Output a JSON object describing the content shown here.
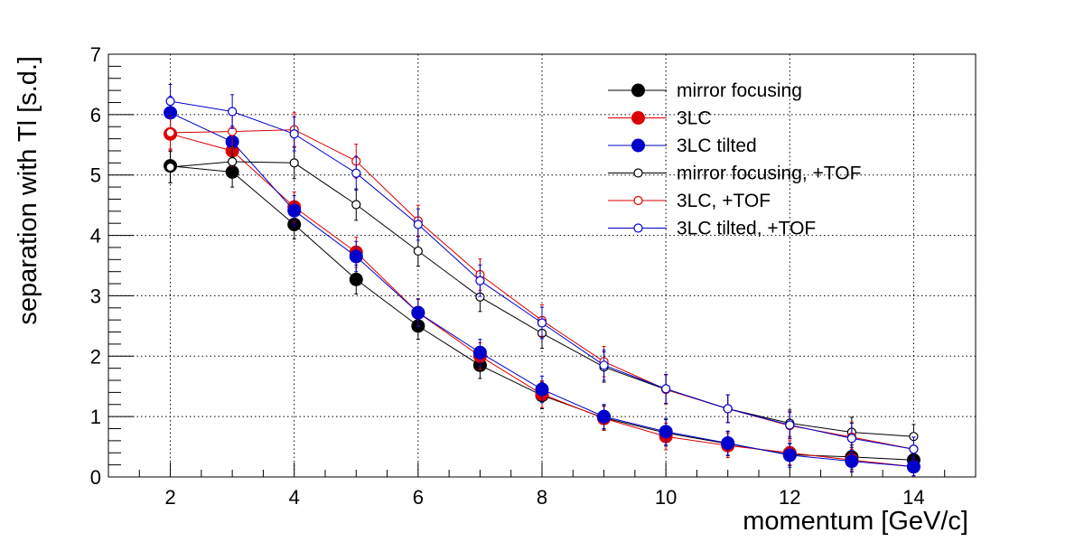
{
  "chart_data": {
    "type": "line",
    "xlabel": "momentum [GeV/c]",
    "ylabel": "separation with Tl [s.d.]",
    "xlim": [
      1,
      15
    ],
    "ylim": [
      0,
      7
    ],
    "xticks": [
      2,
      4,
      6,
      8,
      10,
      12,
      14
    ],
    "yticks": [
      0,
      1,
      2,
      3,
      4,
      5,
      6,
      7
    ],
    "grid": true,
    "legend_position": "top-right",
    "x": [
      2,
      3,
      4,
      5,
      6,
      7,
      8,
      9,
      10,
      11,
      12,
      13,
      14
    ],
    "series": [
      {
        "name": "mirror focusing",
        "color": "#000000",
        "marker": "filled",
        "values": [
          5.15,
          5.05,
          4.18,
          3.27,
          2.5,
          1.85,
          1.35,
          0.98,
          0.73,
          0.55,
          0.37,
          0.33,
          0.28
        ],
        "errors": [
          0.28,
          0.25,
          0.24,
          0.24,
          0.22,
          0.22,
          0.22,
          0.2,
          0.22,
          0.2,
          0.18,
          0.2,
          0.15
        ]
      },
      {
        "name": "3LC",
        "color": "#dd0000",
        "marker": "filled",
        "values": [
          5.68,
          5.4,
          4.47,
          3.72,
          2.72,
          2.0,
          1.37,
          0.97,
          0.67,
          0.52,
          0.4,
          0.28,
          0.17
        ],
        "errors": [
          0.27,
          0.26,
          0.25,
          0.25,
          0.22,
          0.22,
          0.22,
          0.2,
          0.22,
          0.2,
          0.2,
          0.18,
          0.15
        ]
      },
      {
        "name": "3LC tilted",
        "color": "#0000cc",
        "marker": "filled",
        "values": [
          6.03,
          5.55,
          4.41,
          3.65,
          2.72,
          2.06,
          1.45,
          1.0,
          0.75,
          0.56,
          0.36,
          0.26,
          0.17
        ],
        "errors": [
          0.27,
          0.26,
          0.25,
          0.25,
          0.23,
          0.22,
          0.22,
          0.2,
          0.22,
          0.2,
          0.2,
          0.18,
          0.15
        ]
      },
      {
        "name": "mirror focusing, +TOF",
        "color": "#000000",
        "marker": "open",
        "values": [
          5.13,
          5.22,
          5.2,
          4.51,
          3.74,
          2.98,
          2.38,
          1.82,
          1.45,
          1.13,
          0.89,
          0.74,
          0.67
        ],
        "errors": [
          0.26,
          0.25,
          0.26,
          0.26,
          0.25,
          0.24,
          0.25,
          0.25,
          0.24,
          0.23,
          0.22,
          0.25,
          0.2
        ]
      },
      {
        "name": "3LC, +TOF",
        "color": "#dd0000",
        "marker": "open",
        "values": [
          5.7,
          5.72,
          5.75,
          5.23,
          4.24,
          3.35,
          2.59,
          1.91,
          1.45,
          1.13,
          0.85,
          0.66,
          0.46
        ],
        "errors": [
          0.27,
          0.27,
          0.28,
          0.28,
          0.26,
          0.26,
          0.26,
          0.25,
          0.24,
          0.23,
          0.22,
          0.25,
          0.2
        ]
      },
      {
        "name": "3LC tilted, +TOF",
        "color": "#0000cc",
        "marker": "open",
        "values": [
          6.22,
          6.05,
          5.68,
          5.03,
          4.18,
          3.25,
          2.55,
          1.85,
          1.46,
          1.13,
          0.86,
          0.64,
          0.46
        ],
        "errors": [
          0.28,
          0.28,
          0.28,
          0.28,
          0.26,
          0.26,
          0.26,
          0.25,
          0.24,
          0.23,
          0.22,
          0.25,
          0.2
        ]
      }
    ]
  }
}
